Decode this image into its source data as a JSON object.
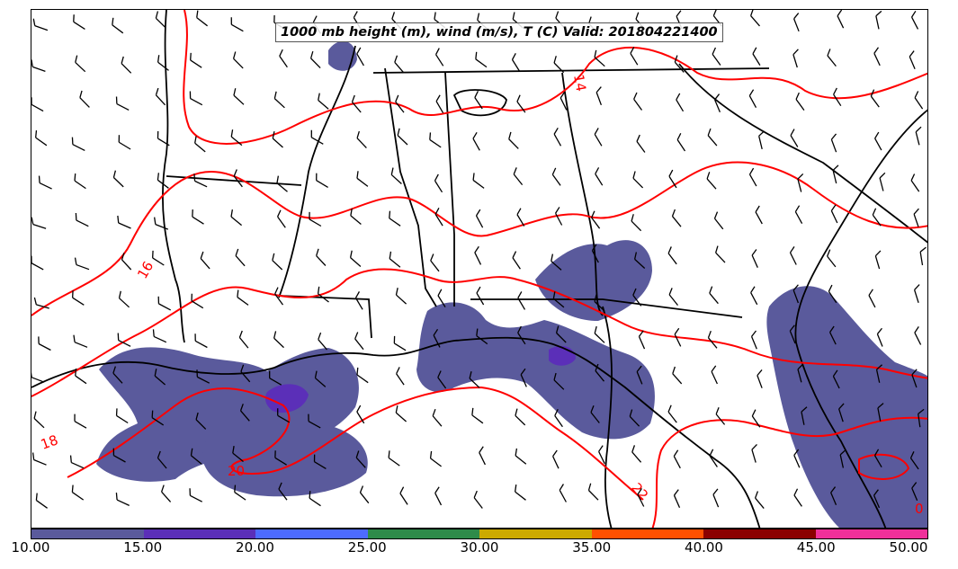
{
  "title": "1000 mb height (m), wind (m/s), T (C) Valid: 201804221400",
  "colors": {
    "temperature_contour": "#ff0000",
    "borders": "#000000",
    "precip_base": "#5a5a9c",
    "precip_heavy": "#5b2fb8"
  },
  "icons": [
    "wind-barb-icon"
  ],
  "contour_labels": [
    "14",
    "16",
    "18",
    "20",
    "22",
    "0"
  ],
  "colorbar": {
    "ticks": [
      "10.00",
      "15.00",
      "20.00",
      "25.00",
      "30.00",
      "35.00",
      "40.00",
      "45.00",
      "50.00"
    ],
    "colors": [
      "#5a5a9c",
      "#5b2fb8",
      "#4d6bff",
      "#2e8b4a",
      "#ccaa00",
      "#ff5000",
      "#8b0000",
      "#f0309a"
    ]
  }
}
